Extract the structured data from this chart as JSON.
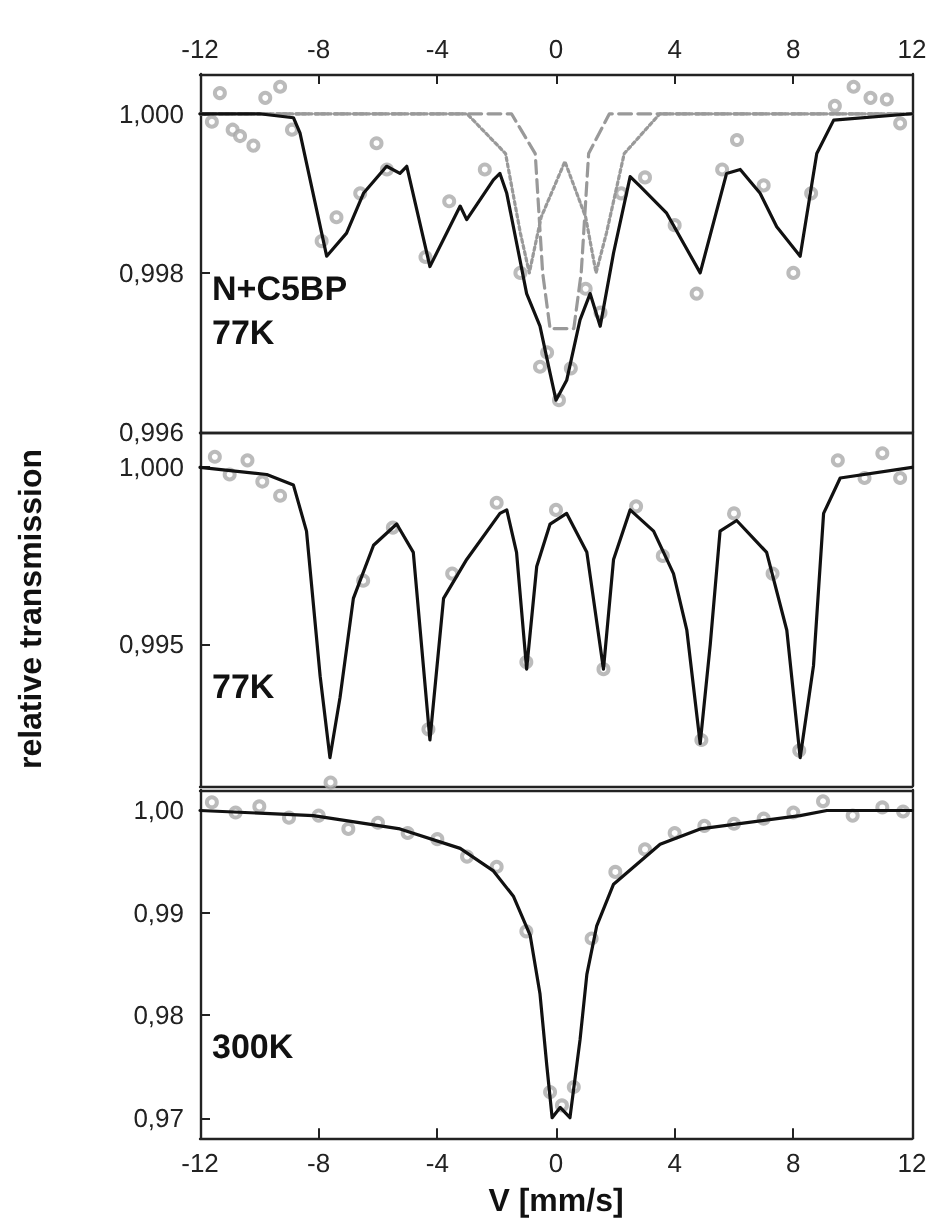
{
  "chart_data": [
    {
      "type": "line",
      "annotations": [
        "N+C5BP",
        "77K"
      ],
      "xlim": [
        -12,
        12
      ],
      "xticks": [
        -12,
        -8,
        -4,
        0,
        4,
        8,
        12
      ],
      "ylim": [
        0.996,
        1.0005
      ],
      "yticks": [
        {
          "value": 1,
          "label": "1,000"
        },
        {
          "value": 0.998,
          "label": "0,998"
        },
        {
          "value": 0.996,
          "label": "0,996"
        }
      ],
      "grid": false,
      "series": [
        {
          "type": "scatter",
          "marker": "circle",
          "color": "#aaaaaa",
          "x": [
            -11.6,
            -11.33,
            -10.9,
            -10.65,
            -10.2,
            -9.8,
            -9.3,
            -8.9,
            -7.9,
            -7.4,
            -6.6,
            -6.05,
            -5.7,
            -4.4,
            -3.6,
            -2.4,
            -1.2,
            -0.54,
            -0.3,
            0.1,
            0.5,
            1.0,
            1.5,
            2.2,
            3.0,
            4.0,
            4.74,
            5.6,
            6.1,
            7.0,
            8.0,
            8.6,
            9.4,
            10.03,
            10.6,
            11.15,
            11.6
          ],
          "values": [
            0.9999,
            1.00026,
            0.9998,
            0.99972,
            0.9996,
            1.0002,
            1.00034,
            0.9998,
            0.9984,
            0.9987,
            0.999,
            0.99963,
            0.9993,
            0.9982,
            0.9989,
            0.9993,
            0.998,
            0.99682,
            0.997,
            0.9964,
            0.9968,
            0.9978,
            0.9975,
            0.999,
            0.9992,
            0.9986,
            0.99774,
            0.9993,
            0.99967,
            0.9991,
            0.998,
            0.999,
            1.0001,
            1.00034,
            1.0002,
            1.00018,
            0.99988
          ]
        },
        {
          "marker": "none",
          "line_style": "dotted",
          "color": "#999999",
          "x": [
            -12,
            -3,
            -1.7,
            -1.2,
            -0.9,
            -0.5,
            0.3,
            1.0,
            1.35,
            1.7,
            2.3,
            3.5,
            12
          ],
          "values": [
            1.0,
            1.0,
            0.9995,
            0.9985,
            0.998,
            0.9987,
            0.9994,
            0.9987,
            0.998,
            0.9985,
            0.9995,
            1.0,
            1.0
          ]
        },
        {
          "marker": "none",
          "line_style": "dashed",
          "color": "#999999",
          "x": [
            -12,
            -1.5,
            -0.7,
            -0.45,
            -0.2,
            0.6,
            0.85,
            1.1,
            1.8,
            12
          ],
          "values": [
            1.0,
            1.0,
            0.9995,
            0.998,
            0.9973,
            0.9973,
            0.998,
            0.9995,
            1.0,
            1.0
          ]
        },
        {
          "marker": "none",
          "line_style": "solid",
          "color": "#111111",
          "x": [
            -12,
            -10,
            -8.85,
            -8.63,
            -7.73,
            -7.06,
            -6.49,
            -5.71,
            -5.26,
            -5.03,
            -4.25,
            -3.23,
            -3.01,
            -2.11,
            -1.89,
            -1.66,
            -0.99,
            -0.54,
            -0.2,
            0.0,
            0.36,
            0.81,
            1.15,
            1.49,
            1.94,
            2.5,
            2.83,
            3.73,
            4.86,
            5.75,
            6.21,
            6.88,
            7.44,
            8.23,
            8.79,
            9.36,
            12
          ],
          "values": [
            1.0,
            1.0,
            0.99995,
            0.99976,
            0.99821,
            0.9985,
            0.999,
            0.99934,
            0.99925,
            0.99934,
            0.99808,
            0.99884,
            0.99867,
            0.99917,
            0.99925,
            0.999,
            0.99774,
            0.99733,
            0.99674,
            0.9964,
            0.99665,
            0.99741,
            0.99774,
            0.99733,
            0.99825,
            0.99921,
            0.99909,
            0.99875,
            0.998,
            0.99925,
            0.9993,
            0.999,
            0.99858,
            0.99821,
            0.9995,
            0.99992,
            1.0
          ]
        }
      ]
    },
    {
      "type": "line",
      "annotations": [
        "77K"
      ],
      "ylabel": "relative transmission",
      "xlim": [
        -12,
        12
      ],
      "tick_labels": "y",
      "ylim": [
        0.991,
        1.001
      ],
      "yticks": [
        {
          "value": 1,
          "label": "1,000"
        },
        {
          "value": 0.995,
          "label": "0,995"
        }
      ],
      "grid": false,
      "series": [
        {
          "type": "scatter",
          "marker": "circle",
          "color": "#aaaaaa",
          "x": [
            -11.5,
            -11.0,
            -10.4,
            -9.9,
            -9.3,
            -7.6,
            -6.5,
            -5.5,
            -4.3,
            -3.5,
            -2.0,
            -1.0,
            0.0,
            1.6,
            2.7,
            3.6,
            4.9,
            6.0,
            7.3,
            8.2,
            9.5,
            10.4,
            11.0,
            11.6
          ],
          "values": [
            1.0003,
            0.9998,
            1.0002,
            0.9996,
            0.9992,
            0.9911,
            0.9968,
            0.9983,
            0.9926,
            0.997,
            0.999,
            0.9945,
            0.9988,
            0.9943,
            0.9989,
            0.9975,
            0.9923,
            0.9987,
            0.997,
            0.992,
            1.0002,
            0.9997,
            1.0004,
            0.9997
          ]
        },
        {
          "marker": "none",
          "line_style": "solid",
          "color": "#111111",
          "x": [
            -12,
            -9.75,
            -8.85,
            -8.41,
            -7.95,
            -7.62,
            -7.28,
            -6.83,
            -6.15,
            -5.37,
            -4.81,
            -4.25,
            -3.79,
            -3.01,
            -1.89,
            -1.66,
            -1.33,
            -0.99,
            -0.65,
            -0.2,
            0.36,
            1.04,
            1.6,
            1.94,
            2.5,
            3.29,
            3.96,
            4.41,
            4.86,
            5.2,
            5.53,
            6.09,
            7.1,
            7.78,
            8.23,
            8.68,
            9.02,
            9.58,
            12
          ],
          "values": [
            1.0,
            0.9998,
            0.9995,
            0.9982,
            0.9941,
            0.9918,
            0.9935,
            0.9963,
            0.9978,
            0.9984,
            0.9976,
            0.9923,
            0.9963,
            0.9974,
            0.9987,
            0.9988,
            0.9976,
            0.9943,
            0.9972,
            0.9984,
            0.9987,
            0.9976,
            0.9943,
            0.9974,
            0.9988,
            0.9982,
            0.997,
            0.9954,
            0.9922,
            0.995,
            0.9982,
            0.9985,
            0.9976,
            0.9954,
            0.9918,
            0.9944,
            0.9987,
            0.9997,
            1.0
          ]
        }
      ]
    },
    {
      "type": "line",
      "annotations": [
        "300K"
      ],
      "xlabel": "V [mm/s]",
      "xlim": [
        -12,
        12
      ],
      "xticks": [
        -12,
        -8,
        -4,
        0,
        4,
        8,
        12
      ],
      "ylim": [
        0.968,
        1.002
      ],
      "yticks": [
        {
          "value": 1,
          "label": "1,00"
        },
        {
          "value": 0.99,
          "label": "0,99"
        },
        {
          "value": 0.98,
          "label": "0,98"
        },
        {
          "value": 0.97,
          "label": "0,97"
        }
      ],
      "grid": false,
      "series": [
        {
          "type": "scatter",
          "marker": "circle",
          "color": "#aaaaaa",
          "x": [
            -11.6,
            -10.8,
            -10.0,
            -9.0,
            -8.0,
            -7.0,
            -6.0,
            -5.0,
            -4.0,
            -3.0,
            -2.0,
            -1.0,
            -0.2,
            0.2,
            0.6,
            1.2,
            2.0,
            3.0,
            4.0,
            5.0,
            6.0,
            7.0,
            8.0,
            9.0,
            10.0,
            11.0,
            11.7
          ],
          "values": [
            1.0008,
            0.9998,
            1.0004,
            0.9993,
            0.9995,
            0.9982,
            0.9988,
            0.9978,
            0.9972,
            0.9955,
            0.9945,
            0.9882,
            0.9725,
            0.9712,
            0.973,
            0.9875,
            0.994,
            0.9962,
            0.9978,
            0.9985,
            0.9987,
            0.9992,
            0.9998,
            1.0009,
            0.9995,
            1.0003,
            0.9999
          ]
        },
        {
          "marker": "none",
          "line_style": "solid",
          "color": "#111111",
          "x": [
            -12,
            -8.18,
            -5.26,
            -3.23,
            -2.11,
            -1.43,
            -0.87,
            -0.54,
            -0.31,
            -0.13,
            0.14,
            0.47,
            0.81,
            1.04,
            1.37,
            1.94,
            3.51,
            4.86,
            8.23,
            9.13,
            12
          ],
          "values": [
            1.0,
            0.9995,
            0.9982,
            0.9963,
            0.9941,
            0.9916,
            0.9878,
            0.9821,
            0.9751,
            0.97,
            0.971,
            0.97,
            0.9776,
            0.984,
            0.9887,
            0.9928,
            0.9967,
            0.9982,
            0.9995,
            1.0,
            1.0
          ]
        }
      ]
    }
  ]
}
